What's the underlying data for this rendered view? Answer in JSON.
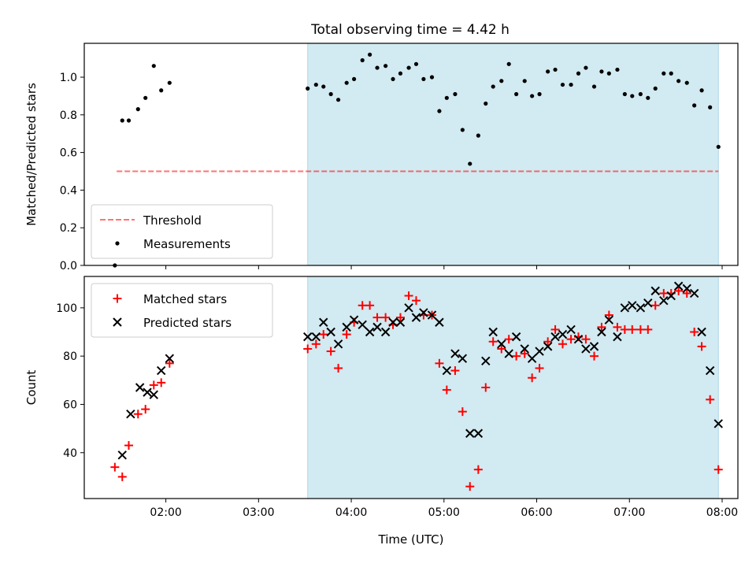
{
  "title": "Total observing time = 4.42 h",
  "colors": {
    "band": "#add8e6",
    "threshold": "#ff0000",
    "measurements": "#000000",
    "matched": "#ff0000",
    "predicted": "#000000"
  },
  "chart_data": [
    {
      "type": "scatter",
      "panel": "top",
      "ylabel": "Matched/Predicted stars",
      "xlabel": "",
      "xlim": [
        1.12,
        8.17
      ],
      "ylim": [
        0.0,
        1.18
      ],
      "yticks": [
        0.0,
        0.2,
        0.4,
        0.6,
        0.8,
        1.0
      ],
      "ytick_labels": [
        "0.0",
        "0.2",
        "0.4",
        "0.6",
        "0.8",
        "1.0"
      ],
      "xticks": [
        2,
        3,
        4,
        5,
        6,
        7,
        8
      ],
      "shaded_region": [
        3.53,
        7.96
      ],
      "legend": {
        "position": "lower-left",
        "entries": [
          "Threshold",
          "Measurements"
        ]
      },
      "threshold": {
        "name": "Threshold",
        "y": 0.5,
        "x": [
          1.47,
          7.96
        ]
      },
      "series": [
        {
          "name": "Measurements",
          "marker": "dot",
          "points": [
            [
              1.45,
              0.0
            ],
            [
              1.53,
              0.77
            ],
            [
              1.6,
              0.77
            ],
            [
              1.7,
              0.83
            ],
            [
              1.78,
              0.89
            ],
            [
              1.87,
              1.06
            ],
            [
              1.95,
              0.93
            ],
            [
              2.04,
              0.97
            ],
            [
              3.53,
              0.94
            ],
            [
              3.62,
              0.96
            ],
            [
              3.7,
              0.95
            ],
            [
              3.78,
              0.91
            ],
            [
              3.86,
              0.88
            ],
            [
              3.95,
              0.97
            ],
            [
              4.03,
              0.99
            ],
            [
              4.12,
              1.09
            ],
            [
              4.2,
              1.12
            ],
            [
              4.28,
              1.05
            ],
            [
              4.37,
              1.06
            ],
            [
              4.45,
              0.99
            ],
            [
              4.53,
              1.02
            ],
            [
              4.62,
              1.05
            ],
            [
              4.7,
              1.07
            ],
            [
              4.78,
              0.99
            ],
            [
              4.87,
              1.0
            ],
            [
              4.95,
              0.82
            ],
            [
              5.03,
              0.89
            ],
            [
              5.12,
              0.91
            ],
            [
              5.2,
              0.72
            ],
            [
              5.28,
              0.54
            ],
            [
              5.37,
              0.69
            ],
            [
              5.45,
              0.86
            ],
            [
              5.53,
              0.95
            ],
            [
              5.62,
              0.98
            ],
            [
              5.7,
              1.07
            ],
            [
              5.78,
              0.91
            ],
            [
              5.87,
              0.98
            ],
            [
              5.95,
              0.9
            ],
            [
              6.03,
              0.91
            ],
            [
              6.12,
              1.03
            ],
            [
              6.2,
              1.04
            ],
            [
              6.28,
              0.96
            ],
            [
              6.37,
              0.96
            ],
            [
              6.45,
              1.02
            ],
            [
              6.53,
              1.05
            ],
            [
              6.62,
              0.95
            ],
            [
              6.7,
              1.03
            ],
            [
              6.78,
              1.02
            ],
            [
              6.87,
              1.04
            ],
            [
              6.95,
              0.91
            ],
            [
              7.03,
              0.9
            ],
            [
              7.12,
              0.91
            ],
            [
              7.2,
              0.89
            ],
            [
              7.28,
              0.94
            ],
            [
              7.37,
              1.02
            ],
            [
              7.45,
              1.02
            ],
            [
              7.53,
              0.98
            ],
            [
              7.62,
              0.97
            ],
            [
              7.7,
              0.85
            ],
            [
              7.78,
              0.93
            ],
            [
              7.87,
              0.84
            ],
            [
              7.96,
              0.63
            ]
          ]
        }
      ]
    },
    {
      "type": "scatter",
      "panel": "bottom",
      "ylabel": "Count",
      "xlabel": "Time (UTC)",
      "xlim": [
        1.12,
        8.17
      ],
      "ylim": [
        21,
        113
      ],
      "yticks": [
        40,
        60,
        80,
        100
      ],
      "ytick_labels": [
        "40",
        "60",
        "80",
        "100"
      ],
      "xticks": [
        2,
        3,
        4,
        5,
        6,
        7,
        8
      ],
      "xtick_labels": [
        "02:00",
        "03:00",
        "04:00",
        "05:00",
        "06:00",
        "07:00",
        "08:00"
      ],
      "shaded_region": [
        3.53,
        7.96
      ],
      "legend": {
        "position": "upper-left",
        "entries": [
          "Matched stars",
          "Predicted stars"
        ]
      },
      "series": [
        {
          "name": "Matched stars",
          "marker": "plus",
          "points": [
            [
              1.45,
              34
            ],
            [
              1.53,
              30
            ],
            [
              1.6,
              43
            ],
            [
              1.7,
              56
            ],
            [
              1.78,
              58
            ],
            [
              1.87,
              68
            ],
            [
              1.95,
              69
            ],
            [
              2.04,
              77
            ],
            [
              3.53,
              83
            ],
            [
              3.62,
              85
            ],
            [
              3.7,
              89
            ],
            [
              3.78,
              82
            ],
            [
              3.86,
              75
            ],
            [
              3.95,
              89
            ],
            [
              4.03,
              94
            ],
            [
              4.12,
              101
            ],
            [
              4.2,
              101
            ],
            [
              4.28,
              96
            ],
            [
              4.37,
              96
            ],
            [
              4.45,
              93
            ],
            [
              4.53,
              96
            ],
            [
              4.62,
              105
            ],
            [
              4.7,
              103
            ],
            [
              4.78,
              97
            ],
            [
              4.87,
              97
            ],
            [
              4.95,
              77
            ],
            [
              5.03,
              66
            ],
            [
              5.12,
              74
            ],
            [
              5.2,
              57
            ],
            [
              5.28,
              26
            ],
            [
              5.37,
              33
            ],
            [
              5.45,
              67
            ],
            [
              5.53,
              86
            ],
            [
              5.62,
              83
            ],
            [
              5.7,
              87
            ],
            [
              5.78,
              80
            ],
            [
              5.87,
              81
            ],
            [
              5.95,
              71
            ],
            [
              6.03,
              75
            ],
            [
              6.12,
              86
            ],
            [
              6.2,
              91
            ],
            [
              6.28,
              85
            ],
            [
              6.37,
              87
            ],
            [
              6.45,
              88
            ],
            [
              6.53,
              87
            ],
            [
              6.62,
              80
            ],
            [
              6.7,
              92
            ],
            [
              6.78,
              97
            ],
            [
              6.87,
              92
            ],
            [
              6.95,
              91
            ],
            [
              7.03,
              91
            ],
            [
              7.12,
              91
            ],
            [
              7.2,
              91
            ],
            [
              7.28,
              101
            ],
            [
              7.37,
              106
            ],
            [
              7.45,
              106
            ],
            [
              7.53,
              107
            ],
            [
              7.62,
              106
            ],
            [
              7.7,
              90
            ],
            [
              7.78,
              84
            ],
            [
              7.87,
              62
            ],
            [
              7.96,
              33
            ]
          ]
        },
        {
          "name": "Predicted stars",
          "marker": "x",
          "points": [
            [
              1.53,
              39
            ],
            [
              1.62,
              56
            ],
            [
              1.72,
              67
            ],
            [
              1.8,
              65
            ],
            [
              1.87,
              64
            ],
            [
              1.95,
              74
            ],
            [
              2.04,
              79
            ],
            [
              3.53,
              88
            ],
            [
              3.62,
              88
            ],
            [
              3.7,
              94
            ],
            [
              3.78,
              90
            ],
            [
              3.86,
              85
            ],
            [
              3.95,
              92
            ],
            [
              4.03,
              95
            ],
            [
              4.12,
              93
            ],
            [
              4.2,
              90
            ],
            [
              4.28,
              92
            ],
            [
              4.37,
              90
            ],
            [
              4.45,
              94
            ],
            [
              4.53,
              94
            ],
            [
              4.62,
              100
            ],
            [
              4.7,
              96
            ],
            [
              4.78,
              98
            ],
            [
              4.87,
              97
            ],
            [
              4.95,
              94
            ],
            [
              5.03,
              74
            ],
            [
              5.12,
              81
            ],
            [
              5.2,
              79
            ],
            [
              5.28,
              48
            ],
            [
              5.37,
              48
            ],
            [
              5.45,
              78
            ],
            [
              5.53,
              90
            ],
            [
              5.62,
              85
            ],
            [
              5.7,
              81
            ],
            [
              5.78,
              88
            ],
            [
              5.87,
              83
            ],
            [
              5.95,
              79
            ],
            [
              6.03,
              82
            ],
            [
              6.12,
              84
            ],
            [
              6.2,
              88
            ],
            [
              6.28,
              89
            ],
            [
              6.37,
              91
            ],
            [
              6.45,
              87
            ],
            [
              6.53,
              83
            ],
            [
              6.62,
              84
            ],
            [
              6.7,
              90
            ],
            [
              6.78,
              95
            ],
            [
              6.87,
              88
            ],
            [
              6.95,
              100
            ],
            [
              7.03,
              101
            ],
            [
              7.12,
              100
            ],
            [
              7.2,
              102
            ],
            [
              7.28,
              107
            ],
            [
              7.37,
              103
            ],
            [
              7.45,
              105
            ],
            [
              7.53,
              109
            ],
            [
              7.62,
              108
            ],
            [
              7.7,
              106
            ],
            [
              7.78,
              90
            ],
            [
              7.87,
              74
            ],
            [
              7.96,
              52
            ]
          ]
        }
      ]
    }
  ]
}
